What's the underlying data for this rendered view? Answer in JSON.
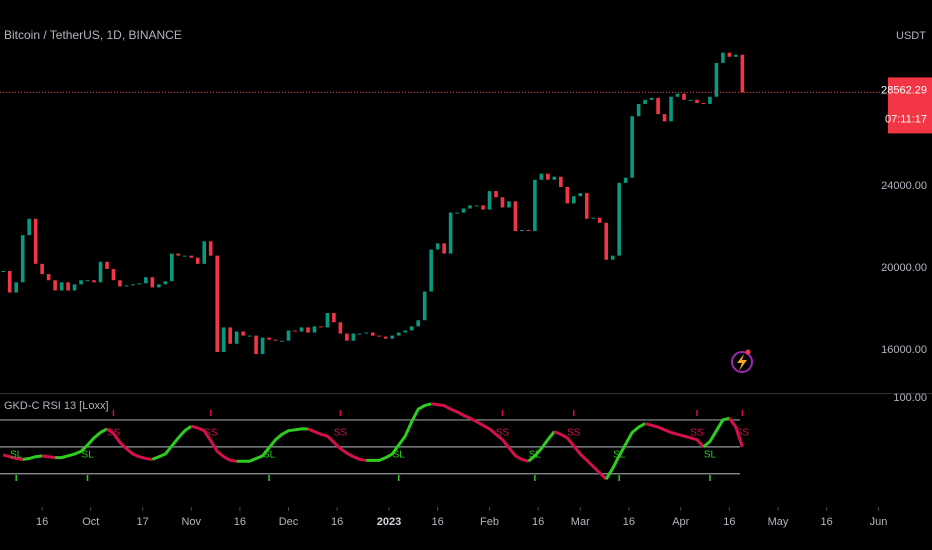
{
  "chart_data": [
    {
      "type": "candlestick",
      "title": "Bitcoin / TetherUS, 1D, BINANCE",
      "currency": "USDT",
      "x": [
        "2022-09-04",
        "2022-09-06",
        "2022-09-08",
        "2022-09-10",
        "2022-09-12",
        "2022-09-14",
        "2022-09-16",
        "2022-09-18",
        "2022-09-20",
        "2022-09-22",
        "2022-09-24",
        "2022-09-26",
        "2022-09-28",
        "2022-09-30",
        "2022-10-02",
        "2022-10-04",
        "2022-10-06",
        "2022-10-08",
        "2022-10-10",
        "2022-10-12",
        "2022-10-14",
        "2022-10-16",
        "2022-10-18",
        "2022-10-20",
        "2022-10-22",
        "2022-10-24",
        "2022-10-26",
        "2022-10-28",
        "2022-10-30",
        "2022-11-01",
        "2022-11-03",
        "2022-11-05",
        "2022-11-07",
        "2022-11-09",
        "2022-11-11",
        "2022-11-13",
        "2022-11-15",
        "2022-11-17",
        "2022-11-19",
        "2022-11-21",
        "2022-11-23",
        "2022-11-25",
        "2022-11-27",
        "2022-11-29",
        "2022-12-01",
        "2022-12-03",
        "2022-12-05",
        "2022-12-07",
        "2022-12-09",
        "2022-12-11",
        "2022-12-13",
        "2022-12-15",
        "2022-12-17",
        "2022-12-19",
        "2022-12-21",
        "2022-12-23",
        "2022-12-25",
        "2022-12-27",
        "2022-12-29",
        "2022-12-31",
        "2023-01-02",
        "2023-01-04",
        "2023-01-06",
        "2023-01-08",
        "2023-01-10",
        "2023-01-12",
        "2023-01-14",
        "2023-01-16",
        "2023-01-18",
        "2023-01-20",
        "2023-01-22",
        "2023-01-24",
        "2023-01-26",
        "2023-01-28",
        "2023-01-30",
        "2023-02-01",
        "2023-02-03",
        "2023-02-05",
        "2023-02-07",
        "2023-02-09",
        "2023-02-11",
        "2023-02-13",
        "2023-02-15",
        "2023-02-17",
        "2023-02-19",
        "2023-02-21",
        "2023-02-23",
        "2023-02-25",
        "2023-02-27",
        "2023-03-01",
        "2023-03-03",
        "2023-03-05",
        "2023-03-07",
        "2023-03-09",
        "2023-03-11",
        "2023-03-13",
        "2023-03-15",
        "2023-03-17",
        "2023-03-19",
        "2023-03-21",
        "2023-03-23",
        "2023-03-25",
        "2023-03-27",
        "2023-03-29",
        "2023-03-31",
        "2023-04-02",
        "2023-04-04",
        "2023-04-06",
        "2023-04-08",
        "2023-04-10",
        "2023-04-12",
        "2023-04-14",
        "2023-04-16",
        "2023-04-18",
        "2023-04-20"
      ],
      "values": [
        19850,
        18800,
        19300,
        21600,
        22400,
        20200,
        19700,
        19400,
        18900,
        19300,
        18900,
        19200,
        19400,
        19400,
        19300,
        20300,
        19950,
        19400,
        19100,
        19150,
        19200,
        19250,
        19550,
        19050,
        19200,
        19350,
        20700,
        20600,
        20600,
        20500,
        20200,
        21300,
        20600,
        15900,
        17100,
        16300,
        16900,
        16700,
        16700,
        15800,
        16600,
        16500,
        16450,
        16450,
        16950,
        16900,
        17100,
        16850,
        17150,
        17100,
        17800,
        17350,
        16800,
        16450,
        16800,
        16800,
        16850,
        16700,
        16650,
        16550,
        16700,
        16850,
        16950,
        17150,
        17450,
        18850,
        20900,
        21200,
        20700,
        22700,
        22700,
        22900,
        23050,
        23050,
        22850,
        23750,
        23450,
        22950,
        23250,
        21800,
        21850,
        21800,
        24300,
        24600,
        24300,
        24450,
        23950,
        23150,
        23500,
        23650,
        22400,
        22450,
        22200,
        20400,
        20600,
        24150,
        24400,
        27400,
        28000,
        28200,
        28300,
        27500,
        27150,
        28350,
        28500,
        28200,
        28200,
        28050,
        28000,
        28350,
        30000,
        30500,
        30300,
        30400,
        28562.29
      ],
      "up_color": "#089981",
      "down_color": "#f23645",
      "ylim": [
        13900,
        33070
      ],
      "yticks": [
        {
          "value": 16000,
          "label": "16000.00"
        },
        {
          "value": 20000,
          "label": "20000.00"
        },
        {
          "value": 24000,
          "label": "24000.00"
        }
      ],
      "countdown": "07:11:17",
      "xlim": [
        "2022-09-03",
        "2023-06-03"
      ],
      "xticks": [
        {
          "value": "2022-09-16",
          "label": "16"
        },
        {
          "value": "2022-10-01",
          "label": "Oct"
        },
        {
          "value": "2022-10-17",
          "label": "17"
        },
        {
          "value": "2022-11-01",
          "label": "Nov"
        },
        {
          "value": "2022-11-16",
          "label": "16"
        },
        {
          "value": "2022-12-01",
          "label": "Dec"
        },
        {
          "value": "2022-12-16",
          "label": "16"
        },
        {
          "value": "2023-01-01",
          "label": "2023"
        },
        {
          "value": "2023-01-16",
          "label": "16"
        },
        {
          "value": "2023-02-01",
          "label": "Feb"
        },
        {
          "value": "2023-02-16",
          "label": "16"
        },
        {
          "value": "2023-03-01",
          "label": "Mar"
        },
        {
          "value": "2023-03-16",
          "label": "16"
        },
        {
          "value": "2023-04-01",
          "label": "Apr"
        },
        {
          "value": "2023-04-16",
          "label": "16"
        },
        {
          "value": "2023-05-01",
          "label": "May"
        },
        {
          "value": "2023-05-16",
          "label": "16"
        },
        {
          "value": "2023-06-01",
          "label": "Jun"
        }
      ]
    },
    {
      "type": "line",
      "title": "GKD-C RSI 13 [Loxx]",
      "values": [
        41,
        39,
        37,
        36,
        37,
        39,
        40,
        39,
        38,
        38,
        40,
        42,
        45,
        52,
        60,
        66,
        70,
        65,
        55,
        48,
        42,
        39,
        37,
        36,
        39,
        42,
        51,
        60,
        68,
        73,
        71,
        68,
        57,
        45,
        39,
        35,
        34,
        34,
        34,
        37,
        40,
        49,
        58,
        64,
        68,
        69,
        70,
        70,
        67,
        64,
        62,
        55,
        48,
        43,
        39,
        36,
        35,
        35,
        35,
        38,
        42,
        52,
        62,
        78,
        92,
        96,
        98,
        97,
        96,
        92,
        89,
        85,
        82,
        78,
        74,
        70,
        64,
        58,
        49,
        40,
        36,
        34,
        40,
        48,
        58,
        67,
        64,
        60,
        51,
        42,
        35,
        28,
        21,
        14,
        26,
        40,
        53,
        66,
        72,
        76,
        74,
        72,
        69,
        66,
        64,
        62,
        60,
        58,
        50,
        56,
        68,
        80,
        82,
        72,
        50
      ],
      "up_color": "#2ecc1f",
      "down_color": "#d3104a",
      "levels": [
        20,
        50,
        80
      ],
      "ylim": [
        -17,
        110
      ],
      "yticks": [
        {
          "value": 100,
          "label": "100.00"
        }
      ],
      "signals": [
        {
          "x": "2022-09-08",
          "label": "SL",
          "color": "#2ecc1f"
        },
        {
          "x": "2022-09-30",
          "label": "SL",
          "color": "#2ecc1f"
        },
        {
          "x": "2022-10-08",
          "label": "SS",
          "color": "#d3104a"
        },
        {
          "x": "2022-11-07",
          "label": "SS",
          "color": "#d3104a"
        },
        {
          "x": "2022-11-25",
          "label": "SL",
          "color": "#2ecc1f"
        },
        {
          "x": "2022-12-17",
          "label": "SS",
          "color": "#d3104a"
        },
        {
          "x": "2023-01-04",
          "label": "SL",
          "color": "#2ecc1f"
        },
        {
          "x": "2023-02-05",
          "label": "SS",
          "color": "#d3104a"
        },
        {
          "x": "2023-02-15",
          "label": "SL",
          "color": "#2ecc1f"
        },
        {
          "x": "2023-02-27",
          "label": "SS",
          "color": "#d3104a"
        },
        {
          "x": "2023-03-13",
          "label": "SL",
          "color": "#2ecc1f"
        },
        {
          "x": "2023-04-06",
          "label": "SS",
          "color": "#d3104a"
        },
        {
          "x": "2023-04-10",
          "label": "SL",
          "color": "#2ecc1f"
        },
        {
          "x": "2023-04-20",
          "label": "SS",
          "color": "#d3104a"
        }
      ]
    }
  ]
}
